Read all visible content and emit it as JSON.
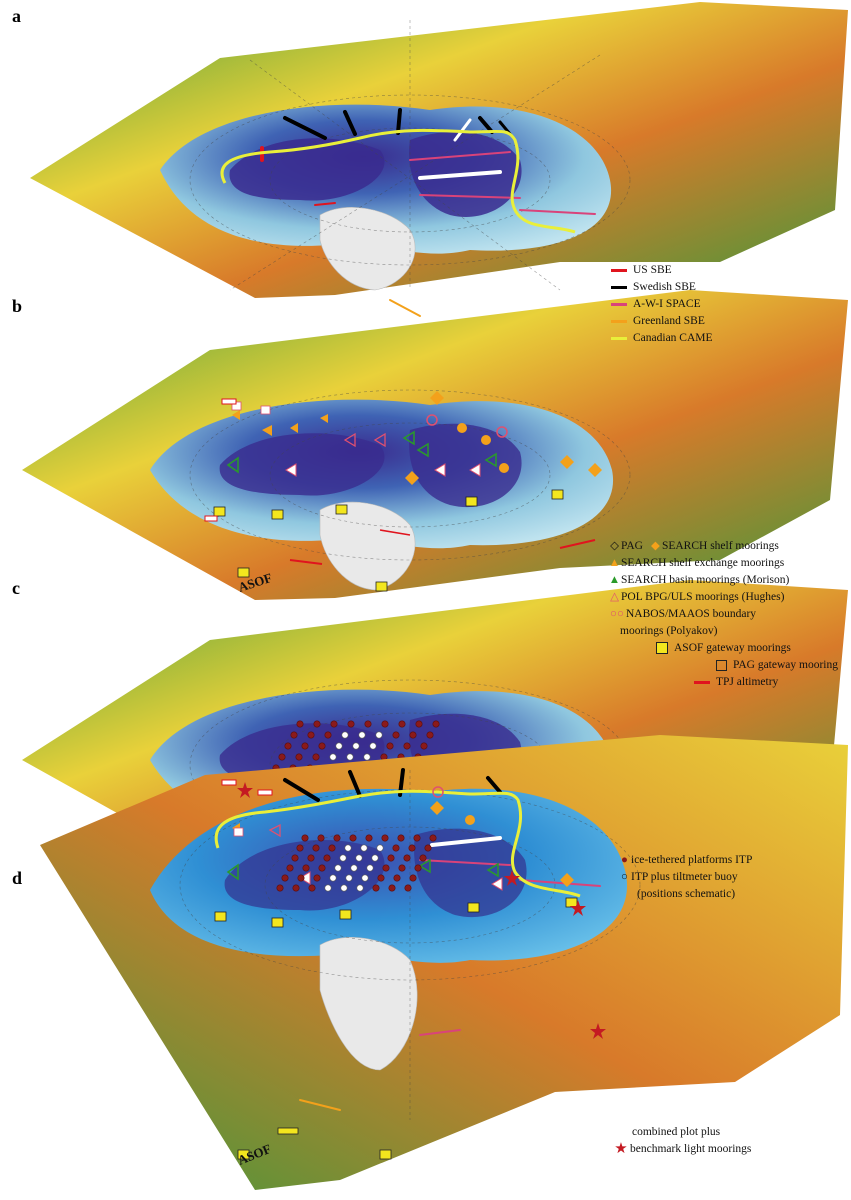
{
  "panels": [
    {
      "label": "a"
    },
    {
      "label": "b"
    },
    {
      "label": "c"
    },
    {
      "label": "d"
    }
  ],
  "legend_a": [
    {
      "label": "US SBE",
      "color": "#e0141e"
    },
    {
      "label": "Swedish SBE",
      "color": "#000000"
    },
    {
      "label": "A-W-I SPACE",
      "color": "#d9437a"
    },
    {
      "label": "Greenland SBE",
      "color": "#f3a11b"
    },
    {
      "label": "Canadian CAME",
      "color": "#e9ef3a"
    }
  ],
  "legend_b": {
    "pag": "PAG",
    "search_shelf": "SEARCH shelf moorings",
    "search_exchange": "SEARCH shelf exchange moorings",
    "search_basin": "SEARCH basin moorings (Morison)",
    "pol": "POL BPG/ULS moorings (Hughes)",
    "nabos_1": "NABOS/MAAOS boundary",
    "nabos_2": "moorings (Polyakov)",
    "asof": "ASOF gateway moorings",
    "pag_gateway": "PAG gateway mooring",
    "tpj": "TPJ altimetry"
  },
  "legend_c": {
    "itp": "ice-tethered platforms ITP",
    "tilt_1": "ITP plus tiltmeter buoy",
    "tilt_2": "(positions schematic)"
  },
  "legend_d": {
    "line1": "combined plot plus",
    "line2": "benchmark light moorings"
  },
  "map_labels": {
    "asof_b": "ASOF",
    "asof_d": "ASOF"
  },
  "colors": {
    "deep_basin": "#3a2c8f",
    "mid_basin": "#3f63b4",
    "shelf": "#8fc7df",
    "land_green": "#3d9a3c",
    "land_yellow": "#e9d13a",
    "land_orange": "#d87a2a",
    "ice_sheet": "#e9e9e9"
  }
}
